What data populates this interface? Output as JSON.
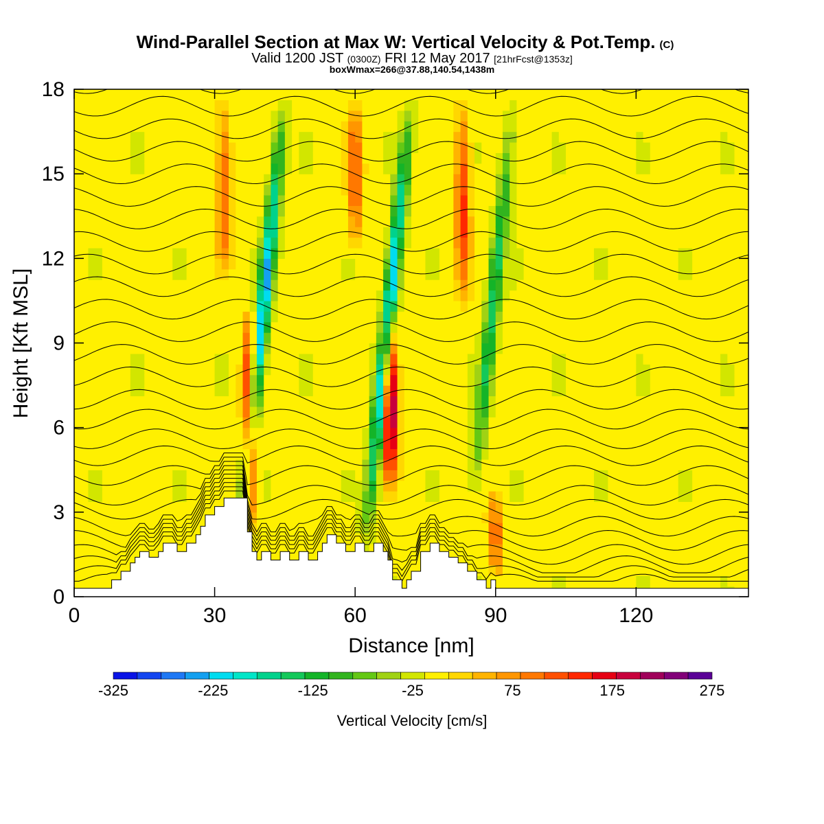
{
  "chart_data": {
    "type": "heatmap",
    "title": "Wind-Parallel Section at Max W: Vertical Velocity & Pot.Temp.",
    "title_mark": "(C)",
    "subtitle": {
      "prefix": "Valid 1200 JST",
      "utc": "(0300Z)",
      "date": "FRI 12 May 2017",
      "fcst": "[21hrFcst@1353z]"
    },
    "info": "boxWmax=266@37.88,140.54,1438m",
    "xlabel": "Distance [nm]",
    "ylabel": "Height [Kft MSL]",
    "xlim": [
      0,
      144
    ],
    "ylim": [
      0,
      18
    ],
    "xticks": [
      "0",
      "30",
      "60",
      "90",
      "120"
    ],
    "yticks": [
      "0",
      "3",
      "6",
      "9",
      "12",
      "15",
      "18"
    ],
    "colorbar": {
      "label": "Vertical Velocity [cm/s]",
      "tick_labels": [
        "-325",
        "-225",
        "-125",
        "-25",
        "75",
        "175",
        "275"
      ],
      "levels": [
        -325,
        -300,
        -275,
        -250,
        -225,
        -200,
        -175,
        -150,
        -125,
        -100,
        -75,
        -50,
        -25,
        0,
        25,
        50,
        75,
        100,
        125,
        150,
        175,
        200,
        225,
        250,
        275
      ],
      "colors": [
        "#0a14e6",
        "#1446f0",
        "#1e78f5",
        "#14a0f0",
        "#00dcf0",
        "#00e6c8",
        "#00d28c",
        "#14c85a",
        "#14b428",
        "#32b41e",
        "#64c814",
        "#a0d214",
        "#d2e600",
        "#fff000",
        "#ffd700",
        "#ffb400",
        "#ff9600",
        "#ff7800",
        "#ff5000",
        "#ff2800",
        "#e60014",
        "#c8003c",
        "#a0005a",
        "#820078",
        "#5a0096"
      ]
    },
    "updrafts": [
      {
        "x": 37.5,
        "z0": 2.0,
        "z1": 10.5,
        "peak": 230
      },
      {
        "x": 67.5,
        "z0": 3.5,
        "z1": 10.5,
        "peak": 266
      },
      {
        "x": 32.0,
        "z0": 11.0,
        "z1": 18.0,
        "peak": 120
      },
      {
        "x": 60.0,
        "z0": 12.0,
        "z1": 18.0,
        "peak": 130
      },
      {
        "x": 83.0,
        "z0": 10.0,
        "z1": 18.0,
        "peak": 150
      },
      {
        "x": 90.0,
        "z0": 0.5,
        "z1": 4.0,
        "peak": 120
      }
    ],
    "downdrafts": [
      {
        "x": 39.0,
        "z0": 1.5,
        "z1": 18.0,
        "peak": -250
      },
      {
        "x": 66.0,
        "z0": 1.5,
        "z1": 18.0,
        "peak": -250
      },
      {
        "x": 88.0,
        "z0": 3.0,
        "z1": 18.0,
        "peak": -150
      }
    ],
    "terrain": {
      "x": [
        0,
        8,
        10,
        12,
        13,
        14,
        16,
        18,
        19,
        20,
        22,
        24,
        26,
        27,
        28,
        30,
        32,
        34,
        37,
        38,
        39,
        40,
        42,
        44,
        46,
        48,
        50,
        52,
        53,
        54,
        56,
        58,
        60,
        62,
        64,
        66,
        67,
        68,
        70,
        71,
        72,
        74,
        76,
        78,
        80,
        82,
        84,
        86,
        88,
        89,
        90,
        91,
        92,
        144
      ],
      "z": [
        0.3,
        0.6,
        0.9,
        1.2,
        1.4,
        1.6,
        1.4,
        1.6,
        1.9,
        1.9,
        1.6,
        1.9,
        2.2,
        2.5,
        2.9,
        3.2,
        3.5,
        3.5,
        2.3,
        1.6,
        1.3,
        1.6,
        1.3,
        1.6,
        1.3,
        1.6,
        1.3,
        1.6,
        1.9,
        2.2,
        1.9,
        1.6,
        1.9,
        1.6,
        1.9,
        1.6,
        1.3,
        0.6,
        0.3,
        0.6,
        0.9,
        1.6,
        1.9,
        1.6,
        1.4,
        1.2,
        0.9,
        0.6,
        0.3,
        0.6,
        0.3,
        0.3,
        0.3,
        0.3
      ]
    },
    "isentropes": {
      "base_z": [
        0.45,
        0.75,
        1.1,
        1.5,
        2.0,
        2.5,
        3.1,
        3.6,
        4.3,
        5.0,
        5.6,
        6.3,
        7.0,
        7.8,
        8.6,
        9.4,
        10.2,
        11.0,
        11.8,
        12.6,
        13.4,
        14.2,
        15.0,
        15.8,
        16.6,
        17.4,
        18.2
      ]
    }
  }
}
